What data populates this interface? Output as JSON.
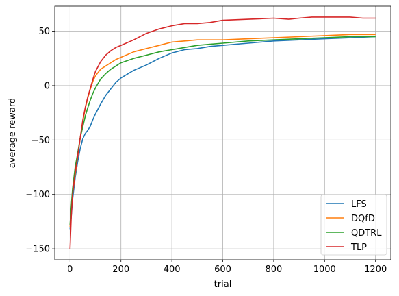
{
  "chart_data": {
    "type": "line",
    "xlabel": "trial",
    "ylabel": "average reward",
    "xlim": [
      -60,
      1260
    ],
    "ylim": [
      -160,
      73
    ],
    "xticks": [
      0,
      200,
      400,
      600,
      800,
      1000,
      1200
    ],
    "yticks": [
      -150,
      -100,
      -50,
      0,
      50
    ],
    "xtick_labels": [
      "0",
      "200",
      "400",
      "600",
      "800",
      "1000",
      "1200"
    ],
    "ytick_labels": [
      "−150",
      "−100",
      "−50",
      "0",
      "50"
    ],
    "grid": true,
    "legend_position": "lower-right",
    "series": [
      {
        "name": "LFS",
        "color": "#1f77b4",
        "x": [
          0,
          5,
          10,
          20,
          30,
          40,
          50,
          60,
          70,
          80,
          90,
          100,
          120,
          140,
          160,
          180,
          200,
          250,
          300,
          350,
          400,
          450,
          500,
          550,
          600,
          700,
          800,
          900,
          1000,
          1100,
          1200
        ],
        "y": [
          -132,
          -120,
          -105,
          -85,
          -70,
          -58,
          -49,
          -44,
          -41,
          -37,
          -31,
          -26,
          -17,
          -9,
          -3,
          3,
          7,
          14,
          19,
          25,
          30,
          33,
          34,
          36,
          37,
          39,
          41,
          42,
          43,
          44,
          45
        ]
      },
      {
        "name": "DQfD",
        "color": "#ff7f0e",
        "x": [
          0,
          5,
          10,
          20,
          30,
          40,
          50,
          60,
          70,
          80,
          90,
          100,
          120,
          140,
          160,
          180,
          200,
          250,
          300,
          350,
          400,
          450,
          500,
          550,
          600,
          700,
          800,
          900,
          1000,
          1100,
          1200
        ],
        "y": [
          -130,
          -112,
          -100,
          -82,
          -65,
          -48,
          -33,
          -21,
          -11,
          -3,
          4,
          9,
          15,
          18,
          21,
          24,
          26,
          31,
          34,
          37,
          40,
          41,
          42,
          42,
          42,
          43,
          44,
          45,
          46,
          47,
          47
        ]
      },
      {
        "name": "QDTRL",
        "color": "#2ca02c",
        "x": [
          0,
          5,
          10,
          20,
          30,
          40,
          50,
          60,
          70,
          80,
          90,
          100,
          120,
          140,
          160,
          180,
          200,
          250,
          300,
          350,
          400,
          450,
          500,
          550,
          600,
          700,
          800,
          900,
          1000,
          1100,
          1200
        ],
        "y": [
          -128,
          -110,
          -95,
          -75,
          -62,
          -48,
          -38,
          -28,
          -20,
          -13,
          -7,
          -2,
          6,
          11,
          15,
          18,
          21,
          25,
          28,
          31,
          33,
          35,
          37,
          38,
          39,
          41,
          42,
          43,
          44,
          45,
          45
        ]
      },
      {
        "name": "TLP",
        "color": "#d62728",
        "x": [
          0,
          5,
          10,
          20,
          30,
          40,
          50,
          60,
          70,
          80,
          90,
          100,
          120,
          140,
          160,
          180,
          200,
          250,
          300,
          350,
          400,
          450,
          500,
          550,
          600,
          700,
          800,
          860,
          900,
          950,
          1000,
          1050,
          1100,
          1150,
          1200
        ],
        "y": [
          -150,
          -120,
          -100,
          -80,
          -65,
          -48,
          -32,
          -20,
          -10,
          -2,
          6,
          13,
          22,
          28,
          32,
          35,
          37,
          42,
          48,
          52,
          55,
          57,
          57,
          58,
          60,
          61,
          62,
          61,
          62,
          63,
          63,
          63,
          63,
          62,
          62
        ]
      }
    ]
  }
}
